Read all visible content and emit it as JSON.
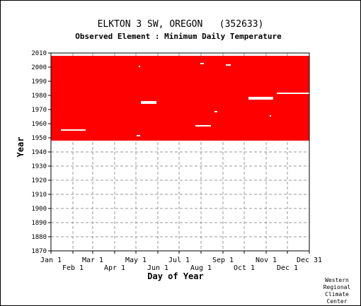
{
  "chart_data": {
    "type": "heatmap",
    "title": "ELKTON 3 SW, OREGON   (352633)",
    "subtitle": "Observed Element : Minimum Daily Temperature",
    "xlabel": "Day of Year",
    "ylabel": "Year",
    "x_range": [
      1,
      366
    ],
    "ylim": [
      1870,
      2010
    ],
    "y_ticks": [
      1870,
      1880,
      1890,
      1900,
      1910,
      1920,
      1930,
      1940,
      1950,
      1960,
      1970,
      1980,
      1990,
      2000,
      2010
    ],
    "x_ticks": [
      {
        "label": "Jan 1",
        "day": 1,
        "row": 1
      },
      {
        "label": "Feb 1",
        "day": 32,
        "row": 2
      },
      {
        "label": "Mar 1",
        "day": 60,
        "row": 1
      },
      {
        "label": "Apr 1",
        "day": 91,
        "row": 2
      },
      {
        "label": "May 1",
        "day": 121,
        "row": 1
      },
      {
        "label": "Jun 1",
        "day": 152,
        "row": 2
      },
      {
        "label": "Jul 1",
        "day": 182,
        "row": 1
      },
      {
        "label": "Aug 1",
        "day": 213,
        "row": 2
      },
      {
        "label": "Sep 1",
        "day": 244,
        "row": 1
      },
      {
        "label": "Oct 1",
        "day": 274,
        "row": 2
      },
      {
        "label": "Nov 1",
        "day": 305,
        "row": 1
      },
      {
        "label": "Dec 1",
        "day": 335,
        "row": 2
      },
      {
        "label": "Dec 31",
        "day": 366,
        "row": 1
      }
    ],
    "grid": true,
    "data_color": "#ff0000",
    "data_blocks": [
      {
        "start_year": 1948,
        "end_year": 2007,
        "start_day": 1,
        "end_day": 366
      }
    ],
    "missing_segments": [
      {
        "year": 1955,
        "start_day": 15,
        "end_day": 50
      },
      {
        "year": 1958,
        "start_day": 205,
        "end_day": 227
      },
      {
        "year": 1951,
        "start_day": 122,
        "end_day": 127
      },
      {
        "year": 1965,
        "start_day": 310,
        "end_day": 312
      },
      {
        "year": 1968,
        "start_day": 232,
        "end_day": 236
      },
      {
        "year": 1974,
        "start_day": 128,
        "end_day": 150
      },
      {
        "year": 1975,
        "start_day": 128,
        "end_day": 150
      },
      {
        "year": 1977,
        "start_day": 280,
        "end_day": 315
      },
      {
        "year": 1978,
        "start_day": 280,
        "end_day": 315
      },
      {
        "year": 1981,
        "start_day": 320,
        "end_day": 366
      },
      {
        "year": 2000,
        "start_day": 125,
        "end_day": 127
      },
      {
        "year": 2002,
        "start_day": 212,
        "end_day": 217
      },
      {
        "year": 2001,
        "start_day": 248,
        "end_day": 255
      }
    ]
  },
  "credit": [
    "Western",
    "Regional",
    "Climate",
    "Center"
  ]
}
